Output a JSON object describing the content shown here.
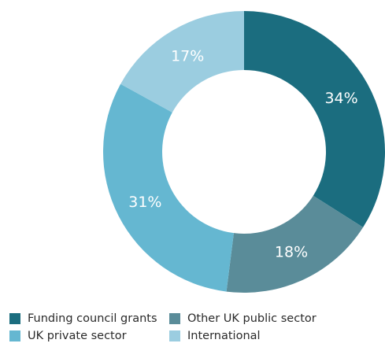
{
  "chart_data": {
    "type": "pie",
    "donut": true,
    "title": "",
    "series": [
      {
        "name": "Funding council grants",
        "value": 34,
        "label": "34%",
        "color": "#1b6d7f"
      },
      {
        "name": "Other UK public sector",
        "value": 18,
        "label": "18%",
        "color": "#5a8c99"
      },
      {
        "name": "UK private sector",
        "value": 31,
        "label": "31%",
        "color": "#65b7d1"
      },
      {
        "name": "International",
        "value": 17,
        "label": "17%",
        "color": "#9bcde0"
      }
    ],
    "legend_position": "bottom"
  }
}
